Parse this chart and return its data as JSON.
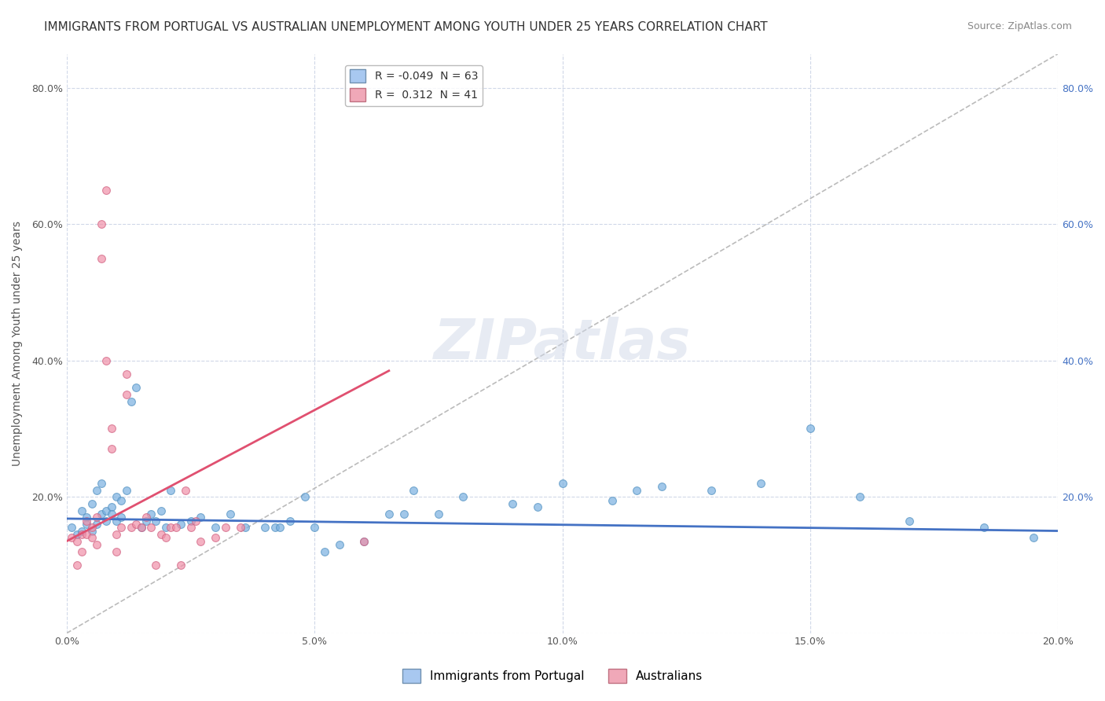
{
  "title": "IMMIGRANTS FROM PORTUGAL VS AUSTRALIAN UNEMPLOYMENT AMONG YOUTH UNDER 25 YEARS CORRELATION CHART",
  "source": "Source: ZipAtlas.com",
  "xlabel_bottom": "",
  "ylabel": "Unemployment Among Youth under 25 years",
  "x_min": 0.0,
  "x_max": 0.2,
  "y_min": 0.0,
  "y_max": 0.85,
  "x_ticks": [
    0.0,
    0.05,
    0.1,
    0.15,
    0.2
  ],
  "x_tick_labels": [
    "0.0%",
    "5.0%",
    "10.0%",
    "15.0%",
    "20.0%"
  ],
  "y_ticks": [
    0.0,
    0.2,
    0.4,
    0.6,
    0.8
  ],
  "y_tick_labels": [
    "",
    "20.0%",
    "40.0%",
    "60.0%",
    "80.0%"
  ],
  "legend_entries": [
    {
      "label": "R = -0.049  N = 63",
      "color": "#a8c8f0"
    },
    {
      "label": "R =  0.312  N = 41",
      "color": "#f0a8b8"
    }
  ],
  "scatter_blue": {
    "color": "#7ab0e0",
    "edge_color": "#5090c0",
    "alpha": 0.7,
    "size": 50,
    "points": [
      [
        0.001,
        0.155
      ],
      [
        0.002,
        0.145
      ],
      [
        0.003,
        0.18
      ],
      [
        0.003,
        0.15
      ],
      [
        0.004,
        0.17
      ],
      [
        0.004,
        0.16
      ],
      [
        0.005,
        0.15
      ],
      [
        0.005,
        0.19
      ],
      [
        0.006,
        0.16
      ],
      [
        0.006,
        0.21
      ],
      [
        0.007,
        0.22
      ],
      [
        0.007,
        0.175
      ],
      [
        0.008,
        0.18
      ],
      [
        0.008,
        0.165
      ],
      [
        0.009,
        0.185
      ],
      [
        0.009,
        0.175
      ],
      [
        0.01,
        0.165
      ],
      [
        0.01,
        0.2
      ],
      [
        0.011,
        0.17
      ],
      [
        0.011,
        0.195
      ],
      [
        0.012,
        0.21
      ],
      [
        0.013,
        0.34
      ],
      [
        0.014,
        0.36
      ],
      [
        0.015,
        0.155
      ],
      [
        0.016,
        0.165
      ],
      [
        0.017,
        0.175
      ],
      [
        0.018,
        0.165
      ],
      [
        0.019,
        0.18
      ],
      [
        0.02,
        0.155
      ],
      [
        0.021,
        0.21
      ],
      [
        0.023,
        0.16
      ],
      [
        0.025,
        0.165
      ],
      [
        0.027,
        0.17
      ],
      [
        0.03,
        0.155
      ],
      [
        0.033,
        0.175
      ],
      [
        0.036,
        0.155
      ],
      [
        0.04,
        0.155
      ],
      [
        0.042,
        0.155
      ],
      [
        0.043,
        0.155
      ],
      [
        0.045,
        0.165
      ],
      [
        0.048,
        0.2
      ],
      [
        0.05,
        0.155
      ],
      [
        0.052,
        0.12
      ],
      [
        0.055,
        0.13
      ],
      [
        0.06,
        0.135
      ],
      [
        0.065,
        0.175
      ],
      [
        0.068,
        0.175
      ],
      [
        0.07,
        0.21
      ],
      [
        0.075,
        0.175
      ],
      [
        0.08,
        0.2
      ],
      [
        0.09,
        0.19
      ],
      [
        0.095,
        0.185
      ],
      [
        0.1,
        0.22
      ],
      [
        0.11,
        0.195
      ],
      [
        0.115,
        0.21
      ],
      [
        0.12,
        0.215
      ],
      [
        0.13,
        0.21
      ],
      [
        0.14,
        0.22
      ],
      [
        0.15,
        0.3
      ],
      [
        0.16,
        0.2
      ],
      [
        0.17,
        0.165
      ],
      [
        0.185,
        0.155
      ],
      [
        0.195,
        0.14
      ]
    ]
  },
  "scatter_pink": {
    "color": "#f090a8",
    "edge_color": "#d06080",
    "alpha": 0.7,
    "size": 50,
    "points": [
      [
        0.001,
        0.14
      ],
      [
        0.002,
        0.135
      ],
      [
        0.002,
        0.1
      ],
      [
        0.003,
        0.145
      ],
      [
        0.003,
        0.12
      ],
      [
        0.004,
        0.165
      ],
      [
        0.004,
        0.145
      ],
      [
        0.005,
        0.155
      ],
      [
        0.005,
        0.14
      ],
      [
        0.006,
        0.17
      ],
      [
        0.006,
        0.13
      ],
      [
        0.007,
        0.6
      ],
      [
        0.007,
        0.55
      ],
      [
        0.008,
        0.65
      ],
      [
        0.008,
        0.4
      ],
      [
        0.009,
        0.3
      ],
      [
        0.009,
        0.27
      ],
      [
        0.01,
        0.145
      ],
      [
        0.01,
        0.12
      ],
      [
        0.011,
        0.155
      ],
      [
        0.012,
        0.35
      ],
      [
        0.012,
        0.38
      ],
      [
        0.013,
        0.155
      ],
      [
        0.014,
        0.16
      ],
      [
        0.015,
        0.155
      ],
      [
        0.016,
        0.17
      ],
      [
        0.017,
        0.155
      ],
      [
        0.018,
        0.1
      ],
      [
        0.019,
        0.145
      ],
      [
        0.02,
        0.14
      ],
      [
        0.021,
        0.155
      ],
      [
        0.022,
        0.155
      ],
      [
        0.023,
        0.1
      ],
      [
        0.024,
        0.21
      ],
      [
        0.025,
        0.155
      ],
      [
        0.026,
        0.165
      ],
      [
        0.027,
        0.135
      ],
      [
        0.03,
        0.14
      ],
      [
        0.032,
        0.155
      ],
      [
        0.035,
        0.155
      ],
      [
        0.06,
        0.135
      ]
    ]
  },
  "trendline_blue": {
    "color": "#4472c4",
    "linewidth": 2.0,
    "x": [
      0.0,
      0.2
    ],
    "y": [
      0.168,
      0.15
    ]
  },
  "trendline_pink": {
    "color": "#e05070",
    "linewidth": 2.0,
    "x": [
      0.0,
      0.065
    ],
    "y": [
      0.135,
      0.385
    ]
  },
  "diag_line": {
    "color": "#bbbbbb",
    "linewidth": 1.2,
    "linestyle": "--",
    "x": [
      0.0,
      0.2
    ],
    "y": [
      0.0,
      0.85
    ]
  },
  "watermark": "ZIPatlas",
  "watermark_color": "#d0d8e8",
  "background_color": "#ffffff",
  "grid_color": "#d0d8e8",
  "title_fontsize": 11,
  "axis_fontsize": 10,
  "tick_fontsize": 9,
  "legend_fontsize": 10,
  "source_fontsize": 9
}
